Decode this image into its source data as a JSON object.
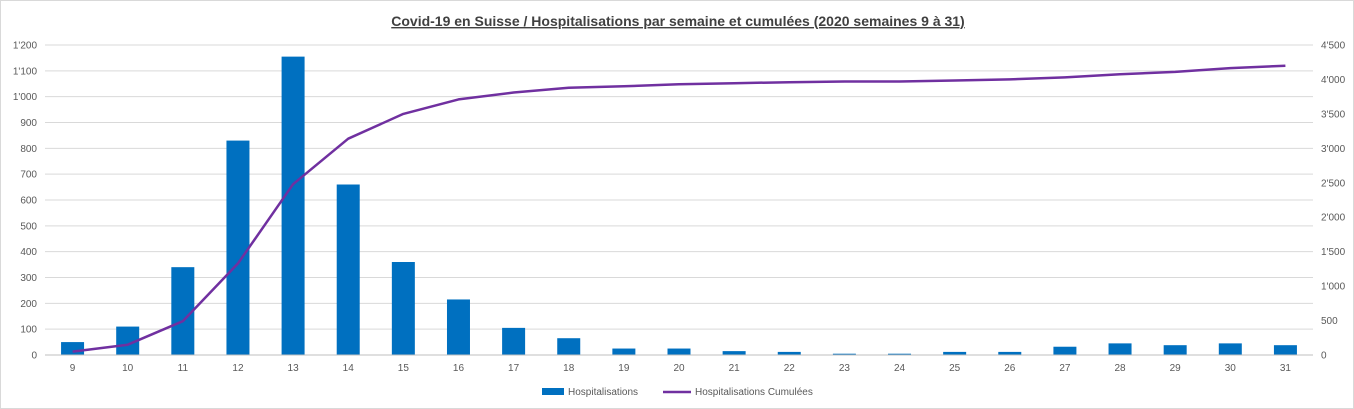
{
  "chart_data": {
    "type": "bar+line",
    "title": "Covid-19 en Suisse / Hospitalisations par semaine et cumulées (2020 semaines 9 à 31)",
    "categories": [
      "9",
      "10",
      "11",
      "12",
      "13",
      "14",
      "15",
      "16",
      "17",
      "18",
      "19",
      "20",
      "21",
      "22",
      "23",
      "24",
      "25",
      "26",
      "27",
      "28",
      "29",
      "30",
      "31"
    ],
    "y_left": {
      "ylim": [
        0,
        1200
      ],
      "ticks": [
        0,
        100,
        200,
        300,
        400,
        500,
        600,
        700,
        800,
        900,
        1000,
        1100,
        1200
      ],
      "tick_labels": [
        "0",
        "100",
        "200",
        "300",
        "400",
        "500",
        "600",
        "700",
        "800",
        "900",
        "1'000",
        "1'100",
        "1'200"
      ]
    },
    "y_right": {
      "ylim": [
        0,
        4500
      ],
      "ticks": [
        0,
        500,
        1000,
        1500,
        2000,
        2500,
        3000,
        3500,
        4000,
        4500
      ],
      "tick_labels": [
        "0",
        "500",
        "1'000",
        "1'500",
        "2'000",
        "2'500",
        "3'000",
        "3'500",
        "4'000",
        "4'500"
      ]
    },
    "series": [
      {
        "name": "Hospitalisations",
        "type": "bar",
        "axis": "left",
        "color": "#0070c0",
        "values": [
          50,
          110,
          340,
          830,
          1155,
          660,
          360,
          215,
          105,
          65,
          25,
          25,
          15,
          12,
          5,
          5,
          12,
          12,
          32,
          45,
          38,
          45,
          38
        ]
      },
      {
        "name": "Hospitalisations Cumulées",
        "type": "line",
        "axis": "right",
        "color": "#7030a0",
        "values": [
          50,
          150,
          490,
          1330,
          2480,
          3140,
          3500,
          3710,
          3810,
          3880,
          3900,
          3930,
          3945,
          3960,
          3970,
          3970,
          3985,
          4000,
          4030,
          4075,
          4110,
          4165,
          4200
        ]
      }
    ],
    "legend_position": "bottom",
    "grid": true
  }
}
